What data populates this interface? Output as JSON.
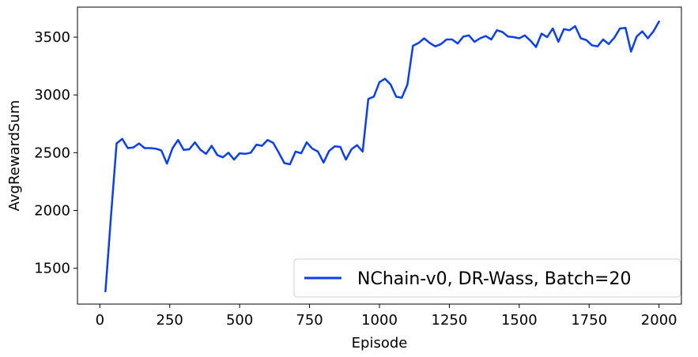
{
  "chart_data": {
    "type": "line",
    "title": "",
    "xlabel": "Episode",
    "ylabel": "AvgRewardSum",
    "xlim": [
      -80,
      2080
    ],
    "ylim": [
      1190,
      3760
    ],
    "xticks": [
      0,
      250,
      500,
      750,
      1000,
      1250,
      1500,
      1750,
      2000
    ],
    "yticks": [
      1500,
      2000,
      2500,
      3000,
      3500
    ],
    "grid": false,
    "legend_position": "lower-right",
    "series": [
      {
        "name": "NChain-v0, DR-Wass, Batch=20",
        "color": "#0a3ff0",
        "x": [
          20,
          40,
          60,
          80,
          100,
          120,
          140,
          160,
          180,
          200,
          220,
          240,
          260,
          280,
          300,
          320,
          340,
          360,
          380,
          400,
          420,
          440,
          460,
          480,
          500,
          520,
          540,
          560,
          580,
          600,
          620,
          640,
          660,
          680,
          700,
          720,
          740,
          760,
          780,
          800,
          820,
          840,
          860,
          880,
          900,
          920,
          940,
          960,
          980,
          1000,
          1020,
          1040,
          1060,
          1080,
          1100,
          1120,
          1140,
          1160,
          1180,
          1200,
          1220,
          1240,
          1260,
          1280,
          1300,
          1320,
          1340,
          1360,
          1380,
          1400,
          1420,
          1440,
          1460,
          1480,
          1500,
          1520,
          1540,
          1560,
          1580,
          1600,
          1620,
          1640,
          1660,
          1680,
          1700,
          1720,
          1740,
          1760,
          1780,
          1800,
          1820,
          1840,
          1860,
          1880,
          1900,
          1920,
          1940,
          1960,
          1980,
          2000
        ],
        "values": [
          1300,
          1950,
          2580,
          2620,
          2540,
          2545,
          2580,
          2540,
          2540,
          2535,
          2520,
          2405,
          2540,
          2610,
          2525,
          2530,
          2590,
          2525,
          2490,
          2560,
          2480,
          2460,
          2500,
          2440,
          2495,
          2490,
          2500,
          2570,
          2560,
          2610,
          2585,
          2500,
          2410,
          2400,
          2510,
          2495,
          2590,
          2535,
          2510,
          2415,
          2515,
          2555,
          2550,
          2440,
          2530,
          2565,
          2510,
          2965,
          2985,
          3110,
          3140,
          3090,
          2985,
          2975,
          3090,
          3425,
          3450,
          3490,
          3450,
          3420,
          3440,
          3480,
          3480,
          3445,
          3505,
          3515,
          3460,
          3490,
          3510,
          3480,
          3560,
          3545,
          3505,
          3500,
          3490,
          3515,
          3470,
          3415,
          3530,
          3500,
          3575,
          3460,
          3570,
          3560,
          3595,
          3490,
          3475,
          3430,
          3420,
          3480,
          3440,
          3495,
          3575,
          3580,
          3375,
          3505,
          3550,
          3490,
          3550,
          3635
        ]
      }
    ]
  }
}
